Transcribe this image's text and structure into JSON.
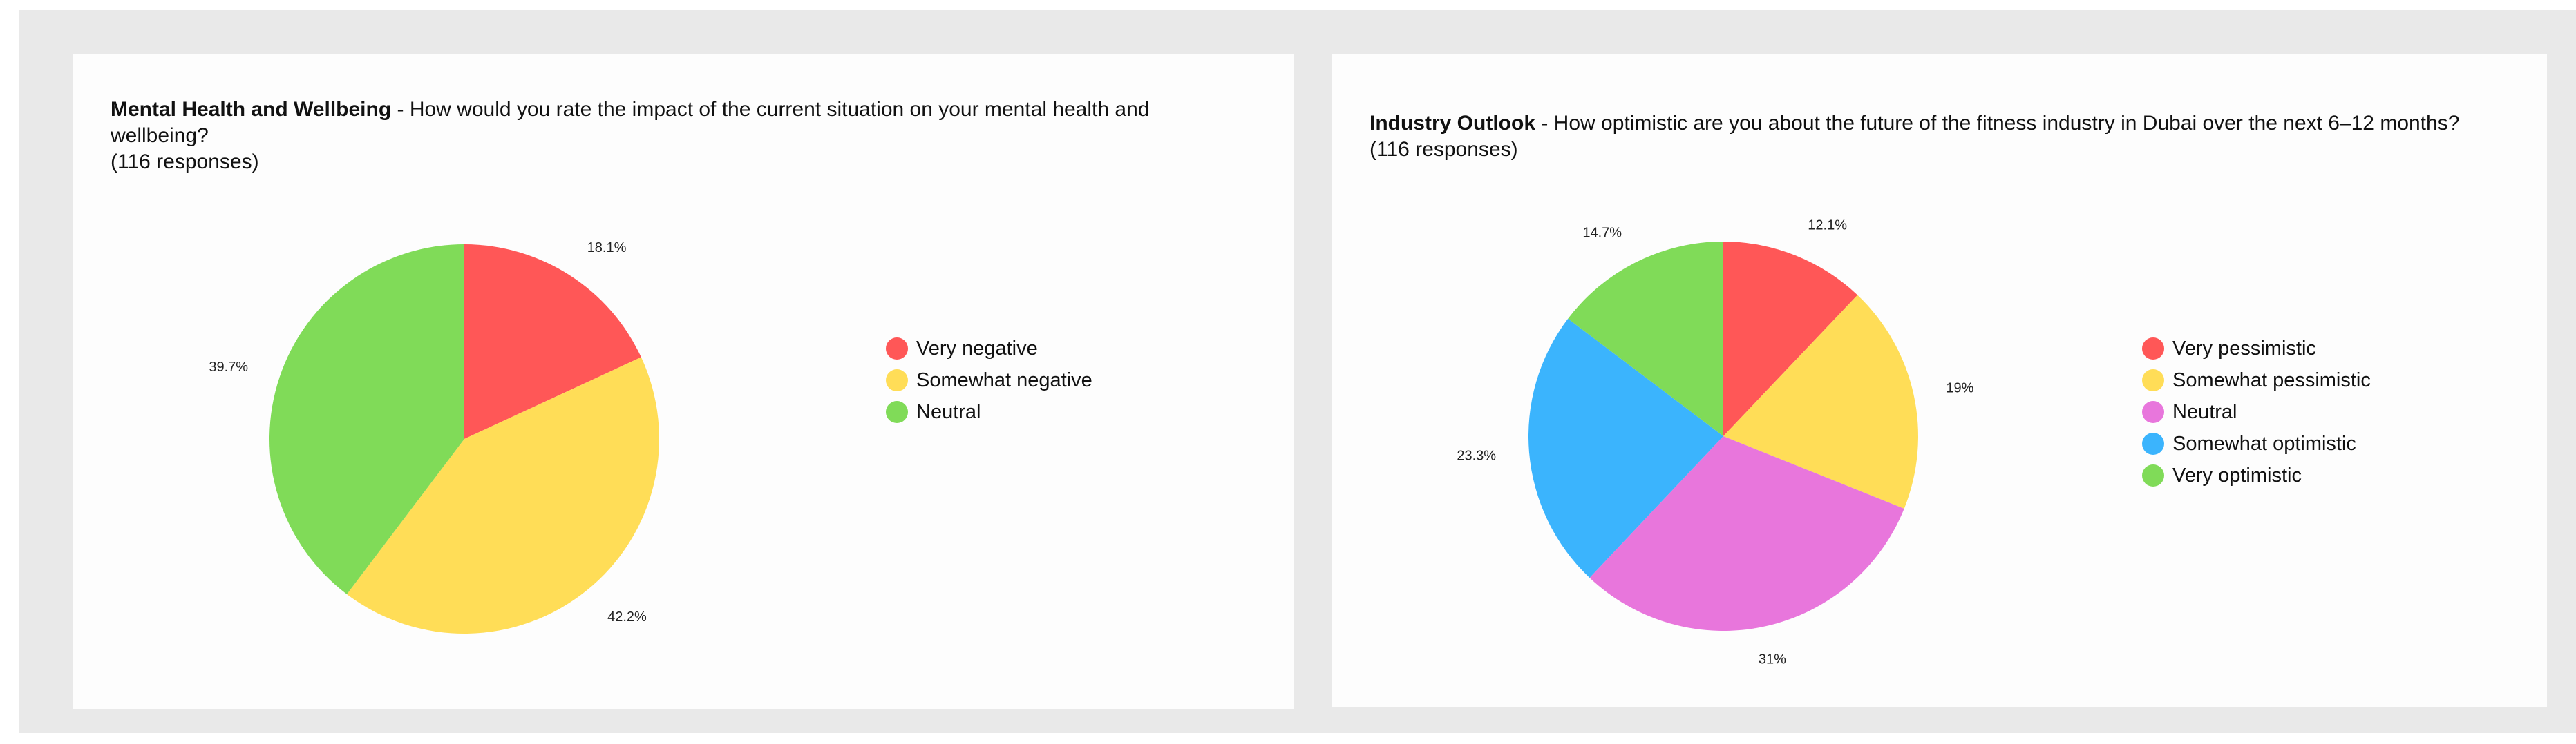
{
  "colors": {
    "red": "#ff5757",
    "yellow": "#ffdd57",
    "pink": "#e876dc",
    "blue": "#3bb4fd",
    "green": "#80db58"
  },
  "chart_data": [
    {
      "type": "pie",
      "title_bold": "Mental Health and Wellbeing",
      "title_rest": " - How would you rate the impact of the current situation on your mental health and wellbeing?",
      "responses": "(116 responses)",
      "categories": [
        "Very negative",
        "Somewhat negative",
        "Neutral"
      ],
      "values": [
        18.1,
        42.2,
        39.7
      ],
      "labels": [
        "18.1%",
        "42.2%",
        "39.7%"
      ],
      "colors": [
        "#ff5757",
        "#ffdd57",
        "#80db58"
      ],
      "legend_position": "right"
    },
    {
      "type": "pie",
      "title_bold": "Industry Outlook",
      "title_rest": " - How optimistic are you about the future of the fitness industry in Dubai over the next 6–12 months?",
      "responses": "(116 responses)",
      "categories": [
        "Very pessimistic",
        "Somewhat pessimistic",
        "Neutral",
        "Somewhat optimistic",
        "Very optimistic"
      ],
      "values": [
        12.1,
        19,
        31,
        23.3,
        14.7
      ],
      "labels": [
        "12.1%",
        "19%",
        "31%",
        "23.3%",
        "14.7%"
      ],
      "colors": [
        "#ff5757",
        "#ffdd57",
        "#e876dc",
        "#3bb4fd",
        "#80db58"
      ],
      "legend_position": "right"
    }
  ]
}
